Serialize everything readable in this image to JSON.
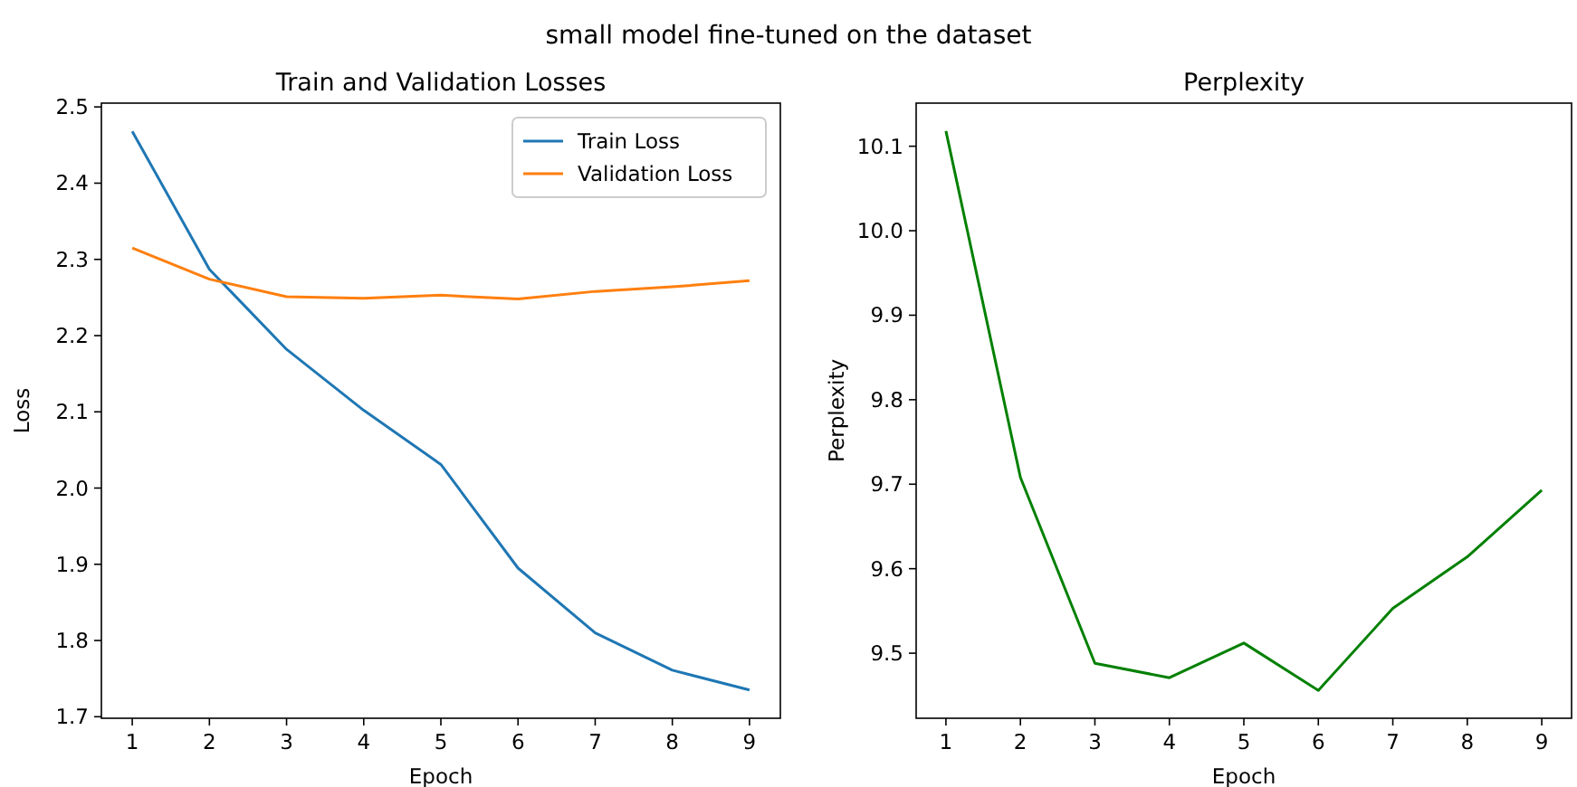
{
  "chart_data": [
    {
      "type": "line",
      "title": "Train and Validation Losses",
      "annotations": [
        "small model fine-tuned on the dataset"
      ],
      "xlabel": "Epoch",
      "ylabel": "Loss",
      "x": [
        1,
        2,
        3,
        4,
        5,
        6,
        7,
        8,
        9
      ],
      "xlim": [
        0.6,
        9.4
      ],
      "xticks": [
        1,
        2,
        3,
        4,
        5,
        6,
        7,
        8,
        9
      ],
      "ylim": [
        1.698,
        2.505
      ],
      "yticks": [
        1.7,
        1.8,
        1.9,
        {
          "value": 2,
          "label": "2.0"
        },
        2.1,
        2.2,
        2.3,
        2.4,
        2.5
      ],
      "legend": "top right",
      "series": [
        {
          "name": "Train Loss",
          "color": "#1f77b4",
          "values": [
            2.468,
            2.287,
            2.182,
            2.102,
            2.031,
            1.895,
            1.81,
            1.761,
            1.735
          ]
        },
        {
          "name": "Validation Loss",
          "color": "#ff7f0e",
          "values": [
            2.315,
            2.274,
            2.251,
            2.249,
            2.253,
            2.248,
            2.258,
            2.264,
            2.272
          ]
        }
      ]
    },
    {
      "type": "line",
      "title": "Perplexity",
      "xlabel": "Epoch",
      "ylabel": "Perplexity",
      "x": [
        1,
        2,
        3,
        4,
        5,
        6,
        7,
        8,
        9
      ],
      "xlim": [
        0.6,
        9.4
      ],
      "xticks": [
        1,
        2,
        3,
        4,
        5,
        6,
        7,
        8,
        9
      ],
      "ylim": [
        9.423,
        10.151
      ],
      "yticks": [
        9.5,
        9.6,
        9.7,
        9.8,
        9.9,
        {
          "value": 10,
          "label": "10.0"
        },
        10.1
      ],
      "series": [
        {
          "color": "#008000",
          "values": [
            10.118,
            9.708,
            9.488,
            9.471,
            9.512,
            9.456,
            9.553,
            9.614,
            9.693
          ]
        }
      ]
    }
  ]
}
